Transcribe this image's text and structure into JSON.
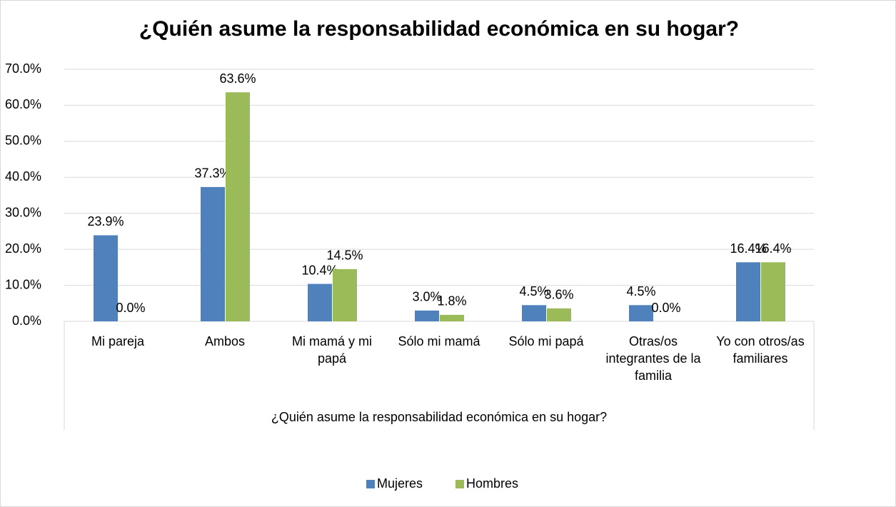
{
  "chart_data": {
    "type": "bar",
    "title": "¿Quién asume la responsabilidad económica en su hogar?",
    "x_label": "¿Quién asume la responsabilidad económica en su hogar?",
    "categories": [
      "Mi pareja",
      "Ambos",
      "Mi mamá y mi papá",
      "Sólo mi mamá",
      "Sólo mi papá",
      "Otras/os integrantes de la familia",
      "Yo con otros/as familiares"
    ],
    "series": [
      {
        "name": "Mujeres",
        "color": "#4f81bd",
        "values": [
          23.9,
          37.3,
          10.4,
          3.0,
          4.5,
          4.5,
          16.4
        ],
        "value_labels": [
          "23.9%",
          "37.3%",
          "10.4%",
          "3.0%",
          "4.5%",
          "4.5%",
          "16.4%"
        ]
      },
      {
        "name": "Hombres",
        "color": "#9bbb59",
        "values": [
          0.0,
          63.6,
          14.5,
          1.8,
          3.6,
          0.0,
          16.4
        ],
        "value_labels": [
          "0.0%",
          "63.6%",
          "14.5%",
          "1.8%",
          "3.6%",
          "0.0%",
          "16.4%"
        ]
      }
    ],
    "ylim": [
      0,
      70
    ],
    "yticks": [
      {
        "value": 0,
        "label": "0.0%"
      },
      {
        "value": 10,
        "label": "10.0%"
      },
      {
        "value": 20,
        "label": "20.0%"
      },
      {
        "value": 30,
        "label": "30.0%"
      },
      {
        "value": 40,
        "label": "40.0%"
      },
      {
        "value": 50,
        "label": "50.0%"
      },
      {
        "value": 60,
        "label": "60.0%"
      },
      {
        "value": 70,
        "label": "70.0%"
      }
    ],
    "grid": true,
    "legend": "bottom"
  }
}
